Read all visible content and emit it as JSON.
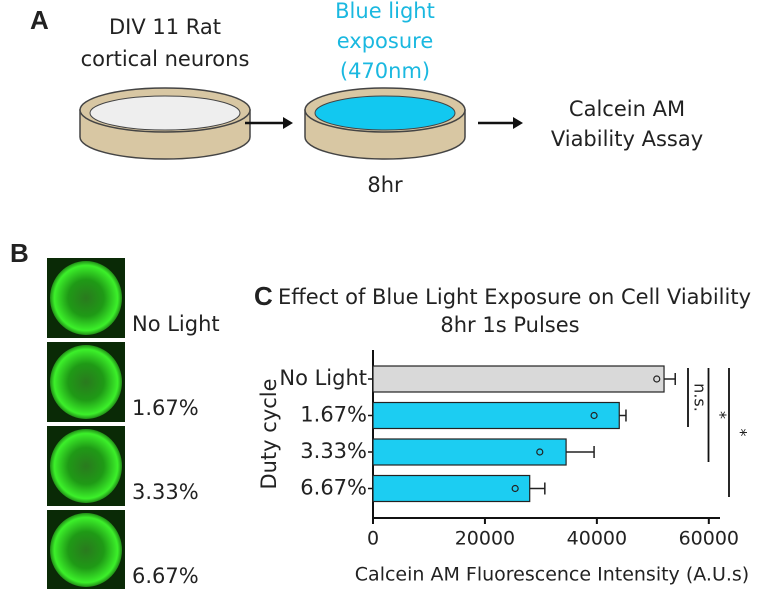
{
  "panel_a": {
    "label": "A",
    "step1": [
      "DIV 11 Rat",
      "cortical neurons"
    ],
    "step2": [
      "Blue light",
      "exposure",
      "(470nm)"
    ],
    "duration": "8hr",
    "step3": [
      "Calcein AM",
      "Viability Assay"
    ]
  },
  "panel_b": {
    "label": "B",
    "images": [
      "No Light",
      "1.67%",
      "3.33%",
      "6.67%"
    ]
  },
  "chart_data": {
    "type": "bar",
    "orientation": "horizontal",
    "panel_label": "C",
    "title": "Effect of Blue Light Exposure on Cell Viability",
    "subtitle": "8hr 1s Pulses",
    "y_label": "Duty cycle",
    "x_label": "Calcein AM Fluorescence Intensity (A.U.s)",
    "categories": [
      "No Light",
      "1.67%",
      "3.33%",
      "6.67%"
    ],
    "values": [
      52000,
      44000,
      34500,
      28000
    ],
    "errors": [
      2000,
      1200,
      5000,
      2700
    ],
    "points": [
      50700,
      39500,
      29800,
      25400
    ],
    "colors": [
      "#d9d9d9",
      "#1ccdf2",
      "#1ccdf2",
      "#1ccdf2"
    ],
    "xlim": [
      0,
      62000
    ],
    "xticks": [
      0,
      20000,
      40000,
      60000
    ],
    "annotations": [
      "n.s.",
      "*",
      "*"
    ]
  }
}
